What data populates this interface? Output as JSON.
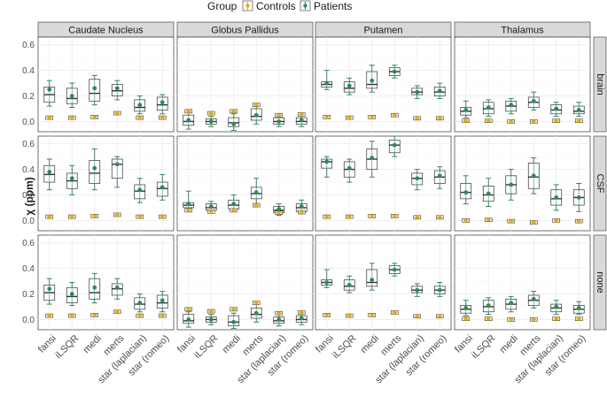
{
  "chart_data": {
    "type": "boxplot",
    "legend": {
      "title": "Group",
      "position": "top",
      "groups": [
        {
          "name": "Controls",
          "color": "#e6ab02"
        },
        {
          "name": "Patients",
          "color": "#2e8b57"
        }
      ]
    },
    "ylabel": "χ (ppm)",
    "ylim": [
      -0.08,
      0.66
    ],
    "yticks": [
      "0.0",
      "0.2",
      "0.4",
      "0.6"
    ],
    "columns": [
      "Caudate Nucleus",
      "Globus Pallidus",
      "Putamen",
      "Thalamus"
    ],
    "rows": [
      "brain",
      "CSF",
      "none"
    ],
    "methods": [
      "fansi",
      "iLSQR",
      "medi",
      "merts",
      "star (laplacian)",
      "star (romeo)"
    ],
    "panels": [
      {
        "row": "brain",
        "column": "Caudate Nucleus",
        "controls": [
          0.03,
          0.03,
          0.035,
          0.065,
          0.03,
          0.03
        ],
        "patients": [
          {
            "q1": 0.15,
            "median": 0.21,
            "q3": 0.27,
            "min": 0.12,
            "max": 0.32,
            "mean": 0.25
          },
          {
            "q1": 0.14,
            "median": 0.18,
            "q3": 0.26,
            "min": 0.11,
            "max": 0.3,
            "mean": 0.2
          },
          {
            "q1": 0.16,
            "median": 0.22,
            "q3": 0.33,
            "min": 0.13,
            "max": 0.36,
            "mean": 0.26
          },
          {
            "q1": 0.2,
            "median": 0.24,
            "q3": 0.29,
            "min": 0.17,
            "max": 0.32,
            "mean": 0.26
          },
          {
            "q1": 0.08,
            "median": 0.11,
            "q3": 0.17,
            "min": 0.06,
            "max": 0.2,
            "mean": 0.13
          },
          {
            "q1": 0.09,
            "median": 0.13,
            "q3": 0.19,
            "min": 0.06,
            "max": 0.21,
            "mean": 0.15
          }
        ]
      },
      {
        "row": "brain",
        "column": "Globus Pallidus",
        "controls": [
          0.08,
          0.065,
          0.08,
          0.13,
          0.05,
          0.055
        ],
        "patients": [
          {
            "q1": -0.03,
            "median": 0.0,
            "q3": 0.05,
            "min": -0.06,
            "max": 0.07,
            "mean": 0.01
          },
          {
            "q1": -0.02,
            "median": 0.0,
            "q3": 0.02,
            "min": -0.04,
            "max": 0.04,
            "mean": 0.0
          },
          {
            "q1": -0.04,
            "median": -0.01,
            "q3": 0.03,
            "min": -0.07,
            "max": 0.06,
            "mean": -0.02
          },
          {
            "q1": 0.01,
            "median": 0.04,
            "q3": 0.1,
            "min": -0.02,
            "max": 0.13,
            "mean": 0.05
          },
          {
            "q1": -0.02,
            "median": 0.0,
            "q3": 0.03,
            "min": -0.04,
            "max": 0.05,
            "mean": 0.0
          },
          {
            "q1": -0.02,
            "median": 0.0,
            "q3": 0.03,
            "min": -0.04,
            "max": 0.05,
            "mean": 0.01
          }
        ]
      },
      {
        "row": "brain",
        "column": "Putamen",
        "controls": [
          0.035,
          0.03,
          0.035,
          0.05,
          0.025,
          0.025
        ],
        "patients": [
          {
            "q1": 0.27,
            "median": 0.29,
            "q3": 0.31,
            "min": 0.25,
            "max": 0.4,
            "mean": 0.3
          },
          {
            "q1": 0.23,
            "median": 0.26,
            "q3": 0.31,
            "min": 0.21,
            "max": 0.34,
            "mean": 0.28
          },
          {
            "q1": 0.26,
            "median": 0.29,
            "q3": 0.39,
            "min": 0.23,
            "max": 0.44,
            "mean": 0.32
          },
          {
            "q1": 0.36,
            "median": 0.39,
            "q3": 0.42,
            "min": 0.34,
            "max": 0.44,
            "mean": 0.39
          },
          {
            "q1": 0.21,
            "median": 0.23,
            "q3": 0.26,
            "min": 0.18,
            "max": 0.28,
            "mean": 0.23
          },
          {
            "q1": 0.2,
            "median": 0.23,
            "q3": 0.27,
            "min": 0.18,
            "max": 0.3,
            "mean": 0.24
          }
        ]
      },
      {
        "row": "brain",
        "column": "Thalamus",
        "controls": [
          0.005,
          0.005,
          0.0,
          0.0,
          0.005,
          0.005
        ],
        "patients": [
          {
            "q1": 0.05,
            "median": 0.08,
            "q3": 0.11,
            "min": 0.03,
            "max": 0.16,
            "mean": 0.09
          },
          {
            "q1": 0.06,
            "median": 0.1,
            "q3": 0.15,
            "min": 0.04,
            "max": 0.17,
            "mean": 0.11
          },
          {
            "q1": 0.08,
            "median": 0.12,
            "q3": 0.16,
            "min": 0.06,
            "max": 0.18,
            "mean": 0.13
          },
          {
            "q1": 0.11,
            "median": 0.15,
            "q3": 0.19,
            "min": 0.09,
            "max": 0.23,
            "mean": 0.16
          },
          {
            "q1": 0.06,
            "median": 0.09,
            "q3": 0.13,
            "min": 0.04,
            "max": 0.15,
            "mean": 0.1
          },
          {
            "q1": 0.06,
            "median": 0.08,
            "q3": 0.12,
            "min": 0.04,
            "max": 0.15,
            "mean": 0.09
          }
        ]
      },
      {
        "row": "CSF",
        "column": "Caudate Nucleus",
        "controls": [
          0.03,
          0.03,
          0.035,
          0.045,
          0.03,
          0.03
        ],
        "patients": [
          {
            "q1": 0.3,
            "median": 0.36,
            "q3": 0.43,
            "min": 0.24,
            "max": 0.48,
            "mean": 0.38
          },
          {
            "q1": 0.25,
            "median": 0.31,
            "q3": 0.37,
            "min": 0.2,
            "max": 0.43,
            "mean": 0.33
          },
          {
            "q1": 0.29,
            "median": 0.37,
            "q3": 0.47,
            "min": 0.24,
            "max": 0.56,
            "mean": 0.41
          },
          {
            "q1": 0.33,
            "median": 0.44,
            "q3": 0.48,
            "min": 0.26,
            "max": 0.5,
            "mean": 0.44
          },
          {
            "q1": 0.17,
            "median": 0.23,
            "q3": 0.28,
            "min": 0.14,
            "max": 0.33,
            "mean": 0.24
          },
          {
            "q1": 0.19,
            "median": 0.25,
            "q3": 0.3,
            "min": 0.16,
            "max": 0.36,
            "mean": 0.26
          }
        ]
      },
      {
        "row": "CSF",
        "column": "Globus Pallidus",
        "controls": [
          0.08,
          0.07,
          0.08,
          0.12,
          0.06,
          0.065
        ],
        "patients": [
          {
            "q1": 0.1,
            "median": 0.12,
            "q3": 0.14,
            "min": 0.09,
            "max": 0.23,
            "mean": 0.13
          },
          {
            "q1": 0.08,
            "median": 0.1,
            "q3": 0.13,
            "min": 0.07,
            "max": 0.15,
            "mean": 0.11
          },
          {
            "q1": 0.09,
            "median": 0.12,
            "q3": 0.16,
            "min": 0.07,
            "max": 0.2,
            "mean": 0.13
          },
          {
            "q1": 0.17,
            "median": 0.21,
            "q3": 0.26,
            "min": 0.13,
            "max": 0.33,
            "mean": 0.22
          },
          {
            "q1": 0.06,
            "median": 0.08,
            "q3": 0.11,
            "min": 0.04,
            "max": 0.13,
            "mean": 0.09
          },
          {
            "q1": 0.07,
            "median": 0.1,
            "q3": 0.13,
            "min": 0.06,
            "max": 0.16,
            "mean": 0.11
          }
        ]
      },
      {
        "row": "CSF",
        "column": "Putamen",
        "controls": [
          0.03,
          0.03,
          0.035,
          0.035,
          0.025,
          0.025
        ],
        "patients": [
          {
            "q1": 0.41,
            "median": 0.46,
            "q3": 0.48,
            "min": 0.34,
            "max": 0.5,
            "mean": 0.46
          },
          {
            "q1": 0.34,
            "median": 0.4,
            "q3": 0.46,
            "min": 0.3,
            "max": 0.48,
            "mean": 0.41
          },
          {
            "q1": 0.4,
            "median": 0.48,
            "q3": 0.56,
            "min": 0.34,
            "max": 0.62,
            "mean": 0.49
          },
          {
            "q1": 0.53,
            "median": 0.59,
            "q3": 0.63,
            "min": 0.5,
            "max": 0.66,
            "mean": 0.59
          },
          {
            "q1": 0.28,
            "median": 0.33,
            "q3": 0.37,
            "min": 0.24,
            "max": 0.4,
            "mean": 0.33
          },
          {
            "q1": 0.29,
            "median": 0.34,
            "q3": 0.39,
            "min": 0.25,
            "max": 0.42,
            "mean": 0.35
          }
        ]
      },
      {
        "row": "CSF",
        "column": "Thalamus",
        "controls": [
          0.0,
          0.005,
          -0.005,
          -0.015,
          0.0,
          -0.005
        ],
        "patients": [
          {
            "q1": 0.17,
            "median": 0.22,
            "q3": 0.29,
            "min": 0.13,
            "max": 0.35,
            "mean": 0.22
          },
          {
            "q1": 0.15,
            "median": 0.2,
            "q3": 0.27,
            "min": 0.11,
            "max": 0.33,
            "mean": 0.21
          },
          {
            "q1": 0.21,
            "median": 0.28,
            "q3": 0.35,
            "min": 0.16,
            "max": 0.4,
            "mean": 0.28
          },
          {
            "q1": 0.25,
            "median": 0.34,
            "q3": 0.45,
            "min": 0.21,
            "max": 0.49,
            "mean": 0.35
          },
          {
            "q1": 0.12,
            "median": 0.17,
            "q3": 0.24,
            "min": 0.08,
            "max": 0.28,
            "mean": 0.18
          },
          {
            "q1": 0.12,
            "median": 0.18,
            "q3": 0.24,
            "min": 0.07,
            "max": 0.29,
            "mean": 0.18
          }
        ]
      },
      {
        "row": "none",
        "column": "Caudate Nucleus",
        "controls": [
          0.03,
          0.03,
          0.035,
          0.06,
          0.03,
          0.03
        ],
        "patients": [
          {
            "q1": 0.15,
            "median": 0.21,
            "q3": 0.27,
            "min": 0.12,
            "max": 0.32,
            "mean": 0.24
          },
          {
            "q1": 0.13,
            "median": 0.18,
            "q3": 0.25,
            "min": 0.11,
            "max": 0.29,
            "mean": 0.2
          },
          {
            "q1": 0.16,
            "median": 0.21,
            "q3": 0.32,
            "min": 0.13,
            "max": 0.36,
            "mean": 0.25
          },
          {
            "q1": 0.19,
            "median": 0.24,
            "q3": 0.28,
            "min": 0.16,
            "max": 0.32,
            "mean": 0.25
          },
          {
            "q1": 0.08,
            "median": 0.12,
            "q3": 0.17,
            "min": 0.06,
            "max": 0.2,
            "mean": 0.13
          },
          {
            "q1": 0.09,
            "median": 0.13,
            "q3": 0.19,
            "min": 0.06,
            "max": 0.22,
            "mean": 0.15
          }
        ]
      },
      {
        "row": "none",
        "column": "Globus Pallidus",
        "controls": [
          0.08,
          0.065,
          0.08,
          0.13,
          0.05,
          0.055
        ],
        "patients": [
          {
            "q1": -0.03,
            "median": -0.01,
            "q3": 0.04,
            "min": -0.06,
            "max": 0.06,
            "mean": 0.0
          },
          {
            "q1": -0.02,
            "median": 0.0,
            "q3": 0.02,
            "min": -0.04,
            "max": 0.04,
            "mean": 0.0
          },
          {
            "q1": -0.05,
            "median": -0.02,
            "q3": 0.03,
            "min": -0.07,
            "max": 0.05,
            "mean": -0.02
          },
          {
            "q1": 0.01,
            "median": 0.04,
            "q3": 0.09,
            "min": -0.02,
            "max": 0.12,
            "mean": 0.05
          },
          {
            "q1": -0.03,
            "median": -0.01,
            "q3": 0.02,
            "min": -0.05,
            "max": 0.04,
            "mean": 0.0
          },
          {
            "q1": -0.02,
            "median": 0.0,
            "q3": 0.03,
            "min": -0.04,
            "max": 0.05,
            "mean": 0.01
          }
        ]
      },
      {
        "row": "none",
        "column": "Putamen",
        "controls": [
          0.035,
          0.03,
          0.035,
          0.055,
          0.025,
          0.025
        ],
        "patients": [
          {
            "q1": 0.27,
            "median": 0.29,
            "q3": 0.31,
            "min": 0.25,
            "max": 0.39,
            "mean": 0.29
          },
          {
            "q1": 0.23,
            "median": 0.26,
            "q3": 0.31,
            "min": 0.21,
            "max": 0.34,
            "mean": 0.27
          },
          {
            "q1": 0.26,
            "median": 0.29,
            "q3": 0.39,
            "min": 0.23,
            "max": 0.44,
            "mean": 0.31
          },
          {
            "q1": 0.36,
            "median": 0.39,
            "q3": 0.42,
            "min": 0.34,
            "max": 0.44,
            "mean": 0.39
          },
          {
            "q1": 0.21,
            "median": 0.23,
            "q3": 0.26,
            "min": 0.18,
            "max": 0.28,
            "mean": 0.23
          },
          {
            "q1": 0.2,
            "median": 0.23,
            "q3": 0.26,
            "min": 0.18,
            "max": 0.29,
            "mean": 0.23
          }
        ]
      },
      {
        "row": "none",
        "column": "Thalamus",
        "controls": [
          0.005,
          0.005,
          0.0,
          0.0,
          0.005,
          0.005
        ],
        "patients": [
          {
            "q1": 0.05,
            "median": 0.08,
            "q3": 0.11,
            "min": 0.03,
            "max": 0.15,
            "mean": 0.09
          },
          {
            "q1": 0.06,
            "median": 0.1,
            "q3": 0.15,
            "min": 0.04,
            "max": 0.17,
            "mean": 0.11
          },
          {
            "q1": 0.08,
            "median": 0.12,
            "q3": 0.16,
            "min": 0.06,
            "max": 0.18,
            "mean": 0.13
          },
          {
            "q1": 0.11,
            "median": 0.15,
            "q3": 0.19,
            "min": 0.09,
            "max": 0.22,
            "mean": 0.16
          },
          {
            "q1": 0.06,
            "median": 0.09,
            "q3": 0.12,
            "min": 0.04,
            "max": 0.15,
            "mean": 0.1
          },
          {
            "q1": 0.05,
            "median": 0.08,
            "q3": 0.11,
            "min": 0.04,
            "max": 0.14,
            "mean": 0.09
          }
        ]
      }
    ]
  }
}
